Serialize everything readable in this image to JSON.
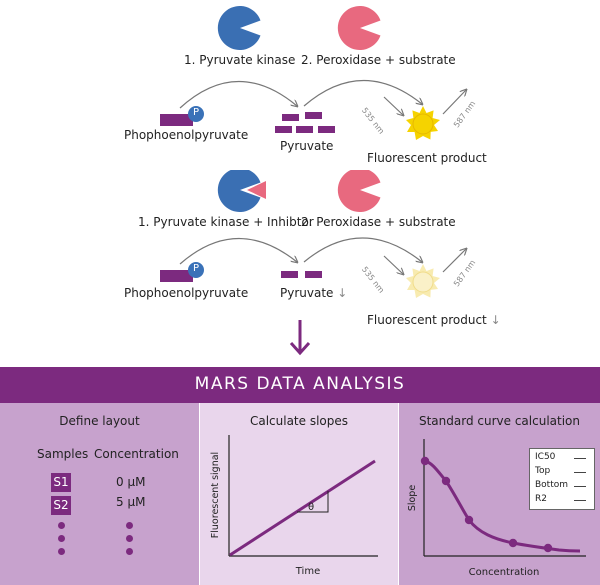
{
  "colors": {
    "enzyme_blue": "#3a6fb3",
    "enzyme_pink": "#e8697f",
    "purple": "#7c2a7f",
    "phosphate_blue": "#3a72b8",
    "panel_dark": "#c7a2cd",
    "panel_light": "#e9d6ec",
    "sun_yellow": "#f5d300",
    "sun_pale": "#f8ebb0"
  },
  "top_reaction": {
    "enzyme1_label": "1. Pyruvate kinase",
    "enzyme2_label": "2. Peroxidase + substrate",
    "substrate_label": "Phophoenolpyruvate",
    "phosphate_symbol": "P",
    "pyruvate_label": "Pyruvate",
    "excitation_label": "535 nm",
    "emission_label": "587 nm",
    "product_label": "Fluorescent product"
  },
  "inhibited_reaction": {
    "enzyme1_label": "1. Pyruvate kinase + Inhibtor",
    "enzyme2_label": "2. Peroxidase + substrate",
    "substrate_label": "Phophoenolpyruvate",
    "phosphate_symbol": "P",
    "pyruvate_label": "Pyruvate",
    "pyruvate_arrow": "↓",
    "excitation_label": "535 nm",
    "emission_label": "587 nm",
    "product_label": "Fluorescent product",
    "product_arrow": "↓"
  },
  "analysis": {
    "title": "MARS DATA ANALYSIS",
    "layout_panel": {
      "title": "Define layout",
      "samples_header": "Samples",
      "concentration_header": "Concentration",
      "rows": [
        {
          "sample": "S1",
          "concentration": "0 μM"
        },
        {
          "sample": "S2",
          "concentration": "5 μM"
        }
      ]
    },
    "slopes_panel": {
      "title": "Calculate slopes",
      "y_label": "Fluorescent signal",
      "x_label": "Time",
      "angle_symbol": "θ"
    },
    "curve_panel": {
      "title": "Standard curve calculation",
      "y_label": "Slope",
      "x_label": "Concentration",
      "legend": [
        "IC50",
        "Top",
        "Bottom",
        "R2"
      ]
    }
  }
}
